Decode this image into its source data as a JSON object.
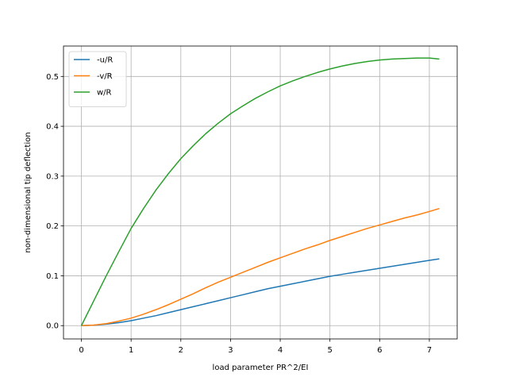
{
  "chart_data": {
    "type": "line",
    "title": "",
    "xlabel": "load parameter PR^2/EI",
    "ylabel": "non-dimensional tip deflection",
    "xlim": [
      -0.36,
      7.56
    ],
    "ylim": [
      -0.0267,
      0.561
    ],
    "xticks": [
      0,
      1,
      2,
      3,
      4,
      5,
      6,
      7
    ],
    "yticks": [
      0.0,
      0.1,
      0.2,
      0.3,
      0.4,
      0.5
    ],
    "xtick_labels": [
      "0",
      "1",
      "2",
      "3",
      "4",
      "5",
      "6",
      "7"
    ],
    "ytick_labels": [
      "0.0",
      "0.1",
      "0.2",
      "0.3",
      "0.4",
      "0.5"
    ],
    "grid": true,
    "legend_position": "top-left",
    "x": [
      0,
      0.25,
      0.5,
      0.75,
      1.0,
      1.25,
      1.5,
      1.75,
      2.0,
      2.25,
      2.5,
      2.75,
      3.0,
      3.25,
      3.5,
      3.75,
      4.0,
      4.25,
      4.5,
      4.75,
      5.0,
      5.25,
      5.5,
      5.75,
      6.0,
      6.25,
      6.5,
      6.75,
      7.0,
      7.2
    ],
    "series": [
      {
        "name": "-u/R",
        "color": "#1f77b4",
        "values": [
          0.0,
          0.001,
          0.003,
          0.006,
          0.01,
          0.015,
          0.02,
          0.026,
          0.032,
          0.038,
          0.044,
          0.05,
          0.056,
          0.062,
          0.068,
          0.074,
          0.079,
          0.084,
          0.089,
          0.094,
          0.099,
          0.103,
          0.107,
          0.111,
          0.115,
          0.119,
          0.123,
          0.127,
          0.131,
          0.134
        ]
      },
      {
        "name": "-v/R",
        "color": "#ff7f0e",
        "values": [
          0.0,
          0.001,
          0.004,
          0.009,
          0.015,
          0.023,
          0.032,
          0.042,
          0.053,
          0.064,
          0.076,
          0.087,
          0.097,
          0.107,
          0.117,
          0.127,
          0.136,
          0.145,
          0.154,
          0.162,
          0.171,
          0.179,
          0.187,
          0.195,
          0.202,
          0.209,
          0.216,
          0.222,
          0.229,
          0.235
        ]
      },
      {
        "name": "w/R",
        "color": "#2ca02c",
        "values": [
          0.0,
          0.05,
          0.1,
          0.148,
          0.195,
          0.235,
          0.272,
          0.305,
          0.335,
          0.361,
          0.385,
          0.406,
          0.425,
          0.441,
          0.456,
          0.469,
          0.481,
          0.491,
          0.5,
          0.508,
          0.515,
          0.521,
          0.526,
          0.53,
          0.533,
          0.535,
          0.536,
          0.537,
          0.537,
          0.535
        ]
      }
    ]
  }
}
